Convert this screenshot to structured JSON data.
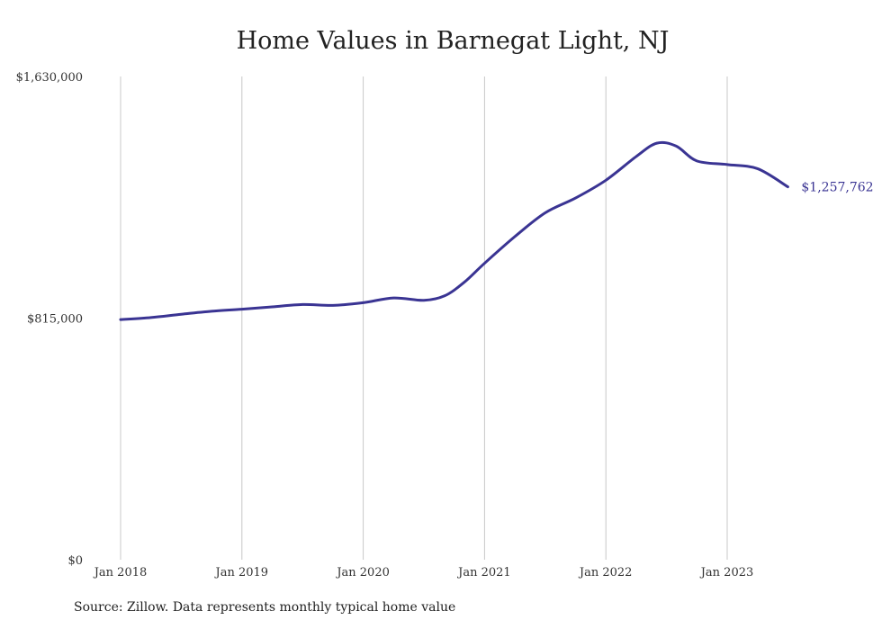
{
  "title": "Home Values in Barnegat Light, NJ",
  "source": "Source: Zillow. Data represents monthly typical home value",
  "colors": {
    "line": "#3a3493",
    "grid": "#c8c8c8",
    "text": "#222222"
  },
  "chart_data": {
    "type": "line",
    "title": "Home Values in Barnegat Light, NJ",
    "xlabel": "",
    "ylabel": "",
    "grid": "vertical",
    "ylim": [
      0,
      1630000
    ],
    "y_ticks": [
      {
        "value": 0,
        "label": "$0"
      },
      {
        "value": 815000,
        "label": "$815,000"
      },
      {
        "value": 1630000,
        "label": "$1,630,000"
      }
    ],
    "x_ticks": [
      {
        "value": 2018.0,
        "label": "Jan 2018"
      },
      {
        "value": 2019.0,
        "label": "Jan 2019"
      },
      {
        "value": 2020.0,
        "label": "Jan 2020"
      },
      {
        "value": 2021.0,
        "label": "Jan 2021"
      },
      {
        "value": 2022.0,
        "label": "Jan 2022"
      },
      {
        "value": 2023.0,
        "label": "Jan 2023"
      }
    ],
    "end_label": "$1,257,762",
    "series": [
      {
        "values": [
          [
            2018.0,
            810000
          ],
          [
            2018.25,
            817000
          ],
          [
            2018.5,
            828000
          ],
          [
            2018.75,
            838000
          ],
          [
            2019.0,
            845000
          ],
          [
            2019.25,
            853000
          ],
          [
            2019.5,
            861000
          ],
          [
            2019.75,
            858000
          ],
          [
            2020.0,
            867000
          ],
          [
            2020.25,
            883000
          ],
          [
            2020.5,
            875000
          ],
          [
            2020.67,
            890000
          ],
          [
            2020.83,
            935000
          ],
          [
            2021.0,
            1000000
          ],
          [
            2021.25,
            1090000
          ],
          [
            2021.5,
            1170000
          ],
          [
            2021.75,
            1220000
          ],
          [
            2022.0,
            1280000
          ],
          [
            2022.25,
            1360000
          ],
          [
            2022.42,
            1405000
          ],
          [
            2022.58,
            1395000
          ],
          [
            2022.75,
            1345000
          ],
          [
            2023.0,
            1333000
          ],
          [
            2023.25,
            1319000
          ],
          [
            2023.5,
            1257762
          ]
        ]
      }
    ]
  }
}
